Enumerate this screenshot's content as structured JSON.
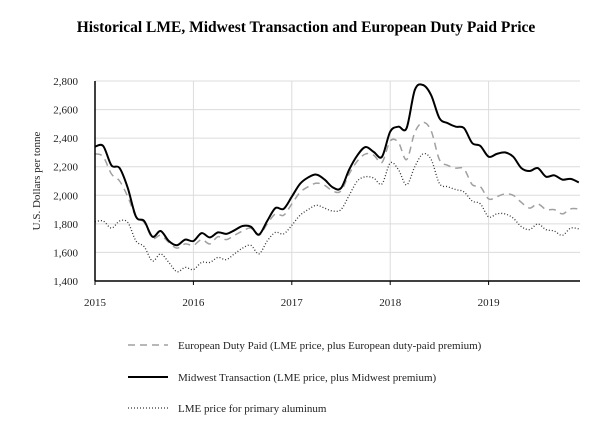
{
  "chart_data": {
    "type": "line",
    "title": "Historical LME, Midwest Transaction and European Duty Paid Price",
    "xlabel": "",
    "ylabel": "U.S. Dollars per tonne",
    "ylim": [
      1400,
      2800
    ],
    "yticks": [
      "1,400",
      "1,600",
      "1,800",
      "2,000",
      "2,200",
      "2,400",
      "2,600",
      "2,800"
    ],
    "ytick_values": [
      1400,
      1600,
      1800,
      2000,
      2200,
      2400,
      2600,
      2800
    ],
    "xticks": [
      "2015",
      "2016",
      "2017",
      "2018",
      "2019"
    ],
    "xlim": [
      "2015-01",
      "2019-12"
    ],
    "grid": true,
    "legend_position": "bottom",
    "x": [
      "2015-01",
      "2015-02",
      "2015-03",
      "2015-04",
      "2015-05",
      "2015-06",
      "2015-07",
      "2015-08",
      "2015-09",
      "2015-10",
      "2015-11",
      "2015-12",
      "2016-01",
      "2016-02",
      "2016-03",
      "2016-04",
      "2016-05",
      "2016-06",
      "2016-07",
      "2016-08",
      "2016-09",
      "2016-10",
      "2016-11",
      "2016-12",
      "2017-01",
      "2017-02",
      "2017-03",
      "2017-04",
      "2017-05",
      "2017-06",
      "2017-07",
      "2017-08",
      "2017-09",
      "2017-10",
      "2017-11",
      "2017-12",
      "2018-01",
      "2018-02",
      "2018-03",
      "2018-04",
      "2018-05",
      "2018-06",
      "2018-07",
      "2018-08",
      "2018-09",
      "2018-10",
      "2018-11",
      "2018-12",
      "2019-01",
      "2019-02",
      "2019-03",
      "2019-04",
      "2019-05",
      "2019-06",
      "2019-07",
      "2019-08",
      "2019-09",
      "2019-10",
      "2019-11",
      "2019-12"
    ],
    "series": [
      {
        "name": "European Duty Paid (LME price, plus European duty-paid premium)",
        "style": "dashed",
        "color": "#a0a0a0",
        "values": [
          2290,
          2270,
          2150,
          2100,
          1990,
          1850,
          1810,
          1700,
          1720,
          1670,
          1630,
          1660,
          1650,
          1690,
          1660,
          1710,
          1690,
          1720,
          1750,
          1770,
          1720,
          1800,
          1870,
          1860,
          1940,
          2020,
          2060,
          2085,
          2070,
          2030,
          2030,
          2150,
          2240,
          2290,
          2280,
          2230,
          2380,
          2370,
          2250,
          2440,
          2510,
          2450,
          2250,
          2210,
          2190,
          2185,
          2075,
          2060,
          1975,
          1990,
          2010,
          2000,
          1950,
          1910,
          1940,
          1900,
          1900,
          1870,
          1905,
          1905
        ]
      },
      {
        "name": "Midwest Transaction (LME price, plus Midwest premium)",
        "style": "solid",
        "color": "#000000",
        "values": [
          2340,
          2345,
          2210,
          2190,
          2050,
          1850,
          1820,
          1710,
          1750,
          1680,
          1650,
          1690,
          1680,
          1735,
          1705,
          1740,
          1730,
          1755,
          1785,
          1780,
          1725,
          1820,
          1910,
          1905,
          1990,
          2080,
          2125,
          2145,
          2110,
          2055,
          2050,
          2180,
          2280,
          2338,
          2303,
          2270,
          2445,
          2480,
          2470,
          2737,
          2772,
          2700,
          2540,
          2505,
          2480,
          2470,
          2366,
          2345,
          2270,
          2290,
          2300,
          2270,
          2190,
          2170,
          2190,
          2130,
          2140,
          2110,
          2115,
          2090
        ]
      },
      {
        "name": "LME price for primary aluminum",
        "style": "dotted",
        "color": "#333333",
        "values": [
          1815,
          1820,
          1770,
          1820,
          1810,
          1680,
          1640,
          1540,
          1590,
          1530,
          1465,
          1495,
          1480,
          1530,
          1530,
          1565,
          1550,
          1590,
          1630,
          1650,
          1590,
          1680,
          1740,
          1730,
          1790,
          1860,
          1900,
          1930,
          1910,
          1890,
          1900,
          2000,
          2100,
          2130,
          2120,
          2080,
          2226,
          2180,
          2073,
          2200,
          2290,
          2250,
          2083,
          2060,
          2040,
          2024,
          1960,
          1940,
          1849,
          1870,
          1870,
          1840,
          1780,
          1760,
          1800,
          1760,
          1750,
          1720,
          1770,
          1765
        ]
      }
    ]
  }
}
